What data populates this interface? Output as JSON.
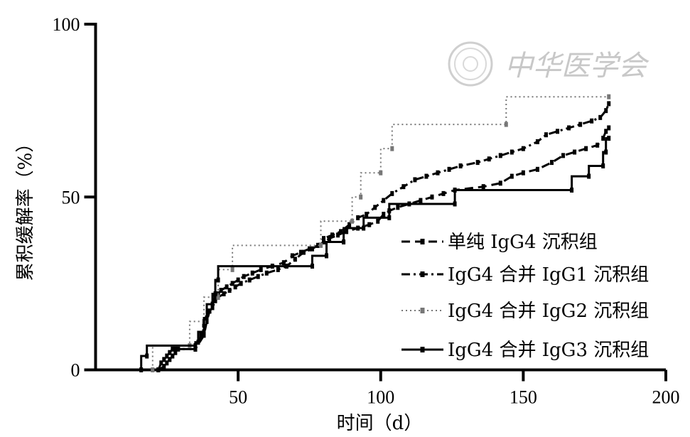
{
  "chart_data": {
    "type": "line",
    "subtype": "step",
    "xlabel": "时间（d）",
    "ylabel": "累积缓解率（%）",
    "xlim": [
      0,
      200
    ],
    "ylim": [
      0,
      100
    ],
    "xticks": [
      50,
      100,
      150,
      200
    ],
    "yticks": [
      0,
      50,
      100
    ],
    "grid": false,
    "legend_position": "bottom-right",
    "watermark": "中华医学会",
    "series": [
      {
        "name": "单纯 IgG4 沉积组",
        "style": "dashed",
        "color": "#000000",
        "points": [
          [
            22,
            0
          ],
          [
            24,
            1
          ],
          [
            25,
            2
          ],
          [
            26,
            3
          ],
          [
            27,
            4
          ],
          [
            28,
            5
          ],
          [
            29,
            6
          ],
          [
            35,
            6
          ],
          [
            38,
            10
          ],
          [
            39,
            14
          ],
          [
            40,
            17
          ],
          [
            41,
            19
          ],
          [
            42,
            21
          ],
          [
            43,
            22
          ],
          [
            44,
            23
          ],
          [
            46,
            24
          ],
          [
            48,
            25
          ],
          [
            50,
            26
          ],
          [
            52,
            27
          ],
          [
            55,
            28
          ],
          [
            58,
            29
          ],
          [
            62,
            30
          ],
          [
            66,
            31
          ],
          [
            69,
            33
          ],
          [
            72,
            34
          ],
          [
            75,
            35
          ],
          [
            78,
            36
          ],
          [
            80,
            37
          ],
          [
            82,
            38
          ],
          [
            85,
            39
          ],
          [
            88,
            40
          ],
          [
            92,
            41
          ],
          [
            96,
            42
          ],
          [
            99,
            43
          ],
          [
            101,
            45
          ],
          [
            103,
            46
          ],
          [
            106,
            47
          ],
          [
            110,
            48
          ],
          [
            114,
            49
          ],
          [
            118,
            50
          ],
          [
            122,
            51
          ],
          [
            126,
            52
          ],
          [
            136,
            53
          ],
          [
            142,
            54
          ],
          [
            146,
            56
          ],
          [
            150,
            57
          ],
          [
            155,
            58
          ],
          [
            160,
            60
          ],
          [
            164,
            62
          ],
          [
            168,
            63
          ],
          [
            172,
            64
          ],
          [
            176,
            65
          ],
          [
            178,
            67
          ],
          [
            179,
            69
          ],
          [
            180,
            70
          ]
        ]
      },
      {
        "name": "IgG4 合并 IgG1 沉积组",
        "style": "dashdot",
        "color": "#000000",
        "points": [
          [
            22,
            0
          ],
          [
            23,
            2
          ],
          [
            24,
            3
          ],
          [
            25,
            4
          ],
          [
            26,
            5
          ],
          [
            27,
            6
          ],
          [
            28,
            6
          ],
          [
            35,
            6
          ],
          [
            37,
            10
          ],
          [
            38,
            13
          ],
          [
            39,
            15
          ],
          [
            40,
            17
          ],
          [
            41,
            18
          ],
          [
            42,
            20
          ],
          [
            43,
            21
          ],
          [
            45,
            22
          ],
          [
            47,
            23
          ],
          [
            49,
            24
          ],
          [
            51,
            25
          ],
          [
            54,
            26
          ],
          [
            57,
            27
          ],
          [
            60,
            28
          ],
          [
            64,
            29
          ],
          [
            67,
            30
          ],
          [
            70,
            32
          ],
          [
            73,
            34
          ],
          [
            76,
            35
          ],
          [
            78,
            36
          ],
          [
            80,
            38
          ],
          [
            83,
            39
          ],
          [
            86,
            40
          ],
          [
            89,
            42
          ],
          [
            92,
            44
          ],
          [
            95,
            45
          ],
          [
            98,
            47
          ],
          [
            101,
            49
          ],
          [
            104,
            51
          ],
          [
            108,
            53
          ],
          [
            112,
            55
          ],
          [
            116,
            56
          ],
          [
            120,
            57
          ],
          [
            124,
            58
          ],
          [
            128,
            59
          ],
          [
            134,
            60
          ],
          [
            138,
            61
          ],
          [
            142,
            62
          ],
          [
            146,
            63
          ],
          [
            150,
            64
          ],
          [
            155,
            66
          ],
          [
            158,
            68
          ],
          [
            162,
            69
          ],
          [
            166,
            70
          ],
          [
            170,
            71
          ],
          [
            174,
            72
          ],
          [
            177,
            73
          ],
          [
            179,
            75
          ],
          [
            180,
            77
          ]
        ]
      },
      {
        "name": "IgG4 合并 IgG2 沉积组",
        "style": "dotted",
        "color": "#777777",
        "points": [
          [
            20,
            0
          ],
          [
            20,
            7
          ],
          [
            33,
            7
          ],
          [
            33,
            14
          ],
          [
            38,
            14
          ],
          [
            38,
            21
          ],
          [
            43,
            21
          ],
          [
            43,
            29
          ],
          [
            48,
            29
          ],
          [
            48,
            36
          ],
          [
            79,
            36
          ],
          [
            79,
            43
          ],
          [
            90,
            43
          ],
          [
            90,
            50
          ],
          [
            93,
            50
          ],
          [
            93,
            57
          ],
          [
            100,
            57
          ],
          [
            100,
            64
          ],
          [
            104,
            64
          ],
          [
            104,
            71
          ],
          [
            144,
            71
          ],
          [
            144,
            79
          ],
          [
            180,
            79
          ]
        ]
      },
      {
        "name": "IgG4 合并 IgG3 沉积组",
        "style": "solid",
        "color": "#000000",
        "points": [
          [
            16,
            0
          ],
          [
            16,
            4
          ],
          [
            18,
            4
          ],
          [
            18,
            7
          ],
          [
            35,
            7
          ],
          [
            35,
            8
          ],
          [
            36,
            8
          ],
          [
            36,
            11
          ],
          [
            38,
            11
          ],
          [
            38,
            15
          ],
          [
            39,
            15
          ],
          [
            39,
            19
          ],
          [
            41,
            19
          ],
          [
            41,
            22
          ],
          [
            42,
            22
          ],
          [
            42,
            26
          ],
          [
            43,
            26
          ],
          [
            43,
            30
          ],
          [
            76,
            30
          ],
          [
            76,
            33
          ],
          [
            81,
            33
          ],
          [
            81,
            37
          ],
          [
            87,
            37
          ],
          [
            87,
            41
          ],
          [
            94,
            41
          ],
          [
            94,
            44
          ],
          [
            103,
            44
          ],
          [
            103,
            48
          ],
          [
            126,
            48
          ],
          [
            126,
            52
          ],
          [
            167,
            52
          ],
          [
            167,
            56
          ],
          [
            173,
            56
          ],
          [
            173,
            59
          ],
          [
            178,
            59
          ],
          [
            178,
            63
          ],
          [
            179,
            63
          ],
          [
            179,
            67
          ],
          [
            180,
            67
          ]
        ]
      }
    ]
  }
}
